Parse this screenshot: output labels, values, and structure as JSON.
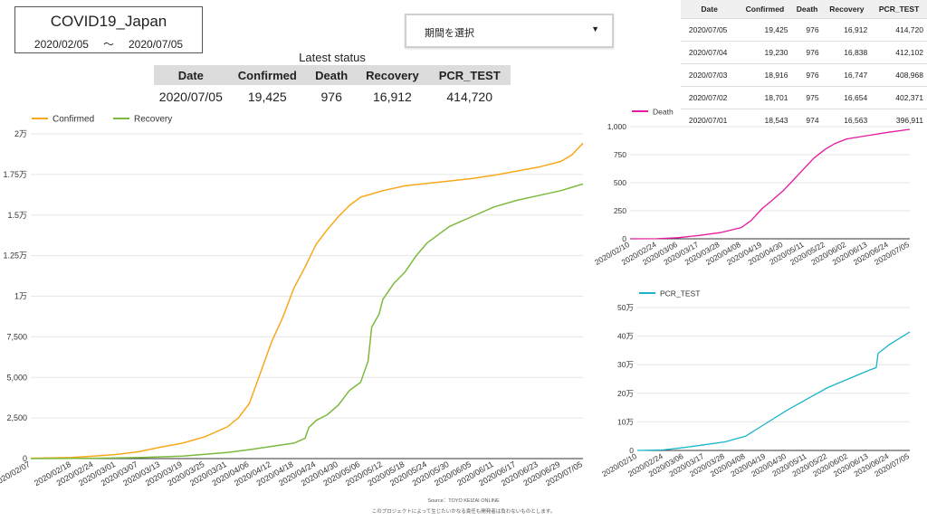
{
  "header": {
    "title": "COVID19_Japan",
    "date_from": "2020/02/05",
    "tilde": "〜",
    "date_to": "2020/07/05"
  },
  "period_select": {
    "label": "期間を選択"
  },
  "latest": {
    "title": "Latest status",
    "headers": [
      "Date",
      "Confirmed",
      "Death",
      "Recovery",
      "PCR_TEST"
    ],
    "values": [
      "2020/07/05",
      "19,425",
      "976",
      "16,912",
      "414,720"
    ]
  },
  "recent_table": {
    "headers": [
      "Date",
      "Confirmed",
      "Death",
      "Recovery",
      "PCR_TEST"
    ],
    "rows": [
      [
        "2020/07/05",
        "19,425",
        "976",
        "16,912",
        "414,720"
      ],
      [
        "2020/07/04",
        "19,230",
        "976",
        "16,838",
        "412,102"
      ],
      [
        "2020/07/03",
        "18,916",
        "976",
        "16,747",
        "408,968"
      ],
      [
        "2020/07/02",
        "18,701",
        "975",
        "16,654",
        "402,371"
      ],
      [
        "2020/07/01",
        "18,543",
        "974",
        "16,563",
        "396,911"
      ]
    ]
  },
  "colors": {
    "confirmed": "#f9a81b",
    "recovery": "#7cba3d",
    "death": "#e41a9f",
    "pcr": "#19b5c9"
  },
  "chart_data": [
    {
      "type": "line",
      "legend_position": "top-left",
      "y_tick_labels": [
        "0",
        "2,500",
        "5,000",
        "7,500",
        "1万",
        "1.25万",
        "1.5万",
        "1.75万",
        "2万"
      ],
      "y_ticks": [
        0,
        2500,
        5000,
        7500,
        10000,
        12500,
        15000,
        17500,
        20000
      ],
      "ylim": [
        0,
        20000
      ],
      "x_tick_labels": [
        "2020/02/07",
        "2020/02/18",
        "2020/02/24",
        "2020/03/01",
        "2020/03/07",
        "2020/03/13",
        "2020/03/19",
        "2020/03/25",
        "2020/03/31",
        "2020/04/06",
        "2020/04/12",
        "2020/04/18",
        "2020/04/24",
        "2020/04/30",
        "2020/05/06",
        "2020/05/12",
        "2020/05/18",
        "2020/05/24",
        "2020/05/30",
        "2020/06/05",
        "2020/06/11",
        "2020/06/17",
        "2020/06/23",
        "2020/06/29",
        "2020/07/05"
      ],
      "series": [
        {
          "name": "Confirmed",
          "x": [
            "2020/02/07",
            "2020/02/18",
            "2020/02/24",
            "2020/03/01",
            "2020/03/07",
            "2020/03/13",
            "2020/03/19",
            "2020/03/25",
            "2020/03/31",
            "2020/04/03",
            "2020/04/06",
            "2020/04/09",
            "2020/04/12",
            "2020/04/15",
            "2020/04/18",
            "2020/04/21",
            "2020/04/24",
            "2020/04/27",
            "2020/04/30",
            "2020/05/03",
            "2020/05/06",
            "2020/05/09",
            "2020/05/12",
            "2020/05/18",
            "2020/05/24",
            "2020/05/30",
            "2020/06/05",
            "2020/06/11",
            "2020/06/17",
            "2020/06/23",
            "2020/06/29",
            "2020/07/02",
            "2020/07/05"
          ],
          "y": [
            20,
            70,
            150,
            250,
            420,
            700,
            950,
            1350,
            1950,
            2500,
            3400,
            5300,
            7200,
            8700,
            10500,
            11800,
            13200,
            14100,
            14900,
            15600,
            16100,
            16300,
            16500,
            16800,
            16950,
            17100,
            17250,
            17450,
            17700,
            17950,
            18300,
            18700,
            19425
          ]
        },
        {
          "name": "Recovery",
          "x": [
            "2020/02/07",
            "2020/02/24",
            "2020/03/07",
            "2020/03/19",
            "2020/03/31",
            "2020/04/06",
            "2020/04/12",
            "2020/04/18",
            "2020/04/21",
            "2020/04/22",
            "2020/04/24",
            "2020/04/27",
            "2020/04/30",
            "2020/05/03",
            "2020/05/06",
            "2020/05/08",
            "2020/05/09",
            "2020/05/11",
            "2020/05/12",
            "2020/05/15",
            "2020/05/18",
            "2020/05/21",
            "2020/05/24",
            "2020/05/27",
            "2020/05/30",
            "2020/06/05",
            "2020/06/11",
            "2020/06/17",
            "2020/06/23",
            "2020/06/29",
            "2020/07/05"
          ],
          "y": [
            0,
            20,
            60,
            150,
            380,
            550,
            750,
            950,
            1250,
            1900,
            2350,
            2700,
            3300,
            4200,
            4700,
            6000,
            8100,
            8900,
            9800,
            10800,
            11500,
            12500,
            13300,
            13800,
            14300,
            14900,
            15500,
            15900,
            16200,
            16500,
            16912
          ]
        }
      ]
    },
    {
      "type": "line",
      "legend_position": "top-left",
      "y_tick_labels": [
        "0",
        "250",
        "500",
        "750",
        "1,000"
      ],
      "y_ticks": [
        0,
        250,
        500,
        750,
        1000
      ],
      "ylim": [
        0,
        1000
      ],
      "x_tick_labels": [
        "2020/02/10",
        "2020/02/24",
        "2020/03/06",
        "2020/03/17",
        "2020/03/28",
        "2020/04/08",
        "2020/04/19",
        "2020/04/30",
        "2020/05/11",
        "2020/05/22",
        "2020/06/02",
        "2020/06/13",
        "2020/06/24",
        "2020/07/05"
      ],
      "series": [
        {
          "name": "Death",
          "x": [
            "2020/02/10",
            "2020/02/24",
            "2020/03/06",
            "2020/03/17",
            "2020/03/28",
            "2020/04/08",
            "2020/04/13",
            "2020/04/19",
            "2020/04/24",
            "2020/04/30",
            "2020/05/05",
            "2020/05/11",
            "2020/05/16",
            "2020/05/22",
            "2020/05/27",
            "2020/06/02",
            "2020/06/13",
            "2020/06/24",
            "2020/07/05"
          ],
          "y": [
            0,
            1,
            10,
            30,
            55,
            100,
            160,
            270,
            340,
            430,
            520,
            630,
            720,
            800,
            850,
            890,
            920,
            950,
            976
          ]
        }
      ]
    },
    {
      "type": "line",
      "legend_position": "top-left",
      "y_tick_labels": [
        "0",
        "10万",
        "20万",
        "30万",
        "40万",
        "50万"
      ],
      "y_ticks": [
        0,
        100000,
        200000,
        300000,
        400000,
        500000
      ],
      "ylim": [
        0,
        500000
      ],
      "x_tick_labels": [
        "2020/02/10",
        "2020/02/24",
        "2020/03/06",
        "2020/03/17",
        "2020/03/28",
        "2020/04/08",
        "2020/04/19",
        "2020/04/30",
        "2020/05/11",
        "2020/05/22",
        "2020/06/02",
        "2020/06/13",
        "2020/06/24",
        "2020/07/05"
      ],
      "series": [
        {
          "name": "PCR_TEST",
          "x": [
            "2020/02/10",
            "2020/02/24",
            "2020/03/06",
            "2020/03/17",
            "2020/03/28",
            "2020/04/08",
            "2020/04/19",
            "2020/04/30",
            "2020/05/11",
            "2020/05/22",
            "2020/06/02",
            "2020/06/13",
            "2020/06/17",
            "2020/06/18",
            "2020/06/24",
            "2020/07/05"
          ],
          "y": [
            0,
            2000,
            10000,
            20000,
            30000,
            50000,
            95000,
            140000,
            180000,
            220000,
            250000,
            280000,
            290000,
            340000,
            370000,
            414720
          ]
        }
      ]
    }
  ],
  "footer": {
    "source": "Source：TOYO KEIZAI ONLINE",
    "disclaimer": "このプロジェクトによって生じたいかなる責任も開発者は負わないものとします。"
  }
}
